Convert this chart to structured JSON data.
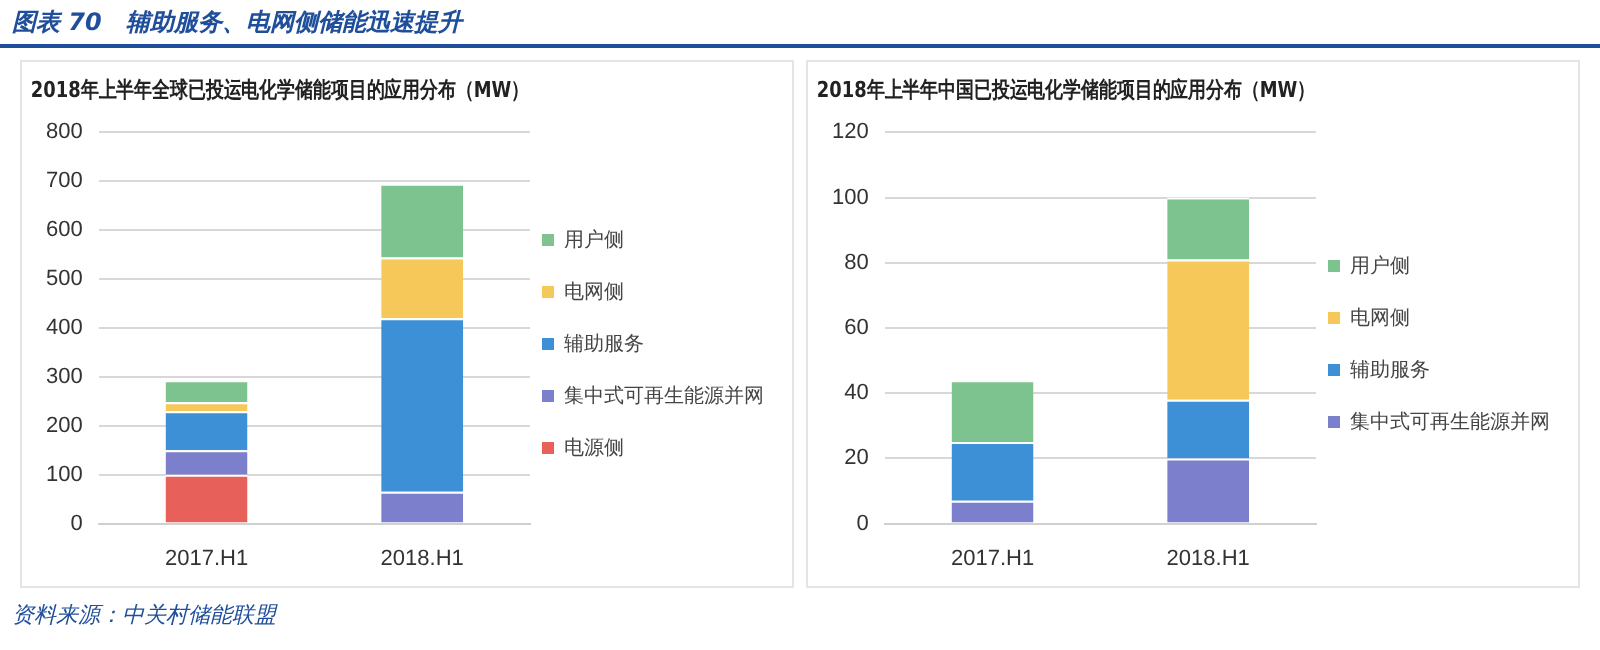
{
  "chart_data": [
    {
      "type": "bar",
      "title": "2018年上半年全球已投运电化学储能项目的应用分布（MW）",
      "categories": [
        "2017.H1",
        "2018.H1"
      ],
      "stacked": true,
      "ylim": [
        0,
        800
      ],
      "yticks": [
        0,
        100,
        200,
        300,
        400,
        500,
        600,
        700,
        800
      ],
      "grid": "y",
      "legend": "right",
      "series": [
        {
          "name": "电源侧",
          "color": "#e8605a",
          "values": [
            100,
            0
          ]
        },
        {
          "name": "集中式可再生能源并网",
          "color": "#7b7fcc",
          "values": [
            50,
            65
          ]
        },
        {
          "name": "辅助服务",
          "color": "#3d8fd6",
          "values": [
            80,
            355
          ]
        },
        {
          "name": "电网侧",
          "color": "#f6c85a",
          "values": [
            18,
            124
          ]
        },
        {
          "name": "用户侧",
          "color": "#7dc38f",
          "values": [
            45,
            151
          ]
        }
      ],
      "annotations": [
        "图表 70　辅助服务、电网侧储能迅速提升",
        "资料来源：中关村储能联盟"
      ]
    },
    {
      "type": "bar",
      "title": "2018年上半年中国已投运电化学储能项目的应用分布（MW）",
      "categories": [
        "2017.H1",
        "2018.H1"
      ],
      "stacked": true,
      "ylim": [
        0,
        120
      ],
      "yticks": [
        0,
        20,
        40,
        60,
        80,
        100,
        120
      ],
      "grid": "y",
      "legend": "right",
      "series": [
        {
          "name": "集中式可再生能源并网",
          "color": "#7b7fcc",
          "values": [
            7,
            20
          ]
        },
        {
          "name": "辅助服务",
          "color": "#3d8fd6",
          "values": [
            18,
            18
          ]
        },
        {
          "name": "电网侧",
          "color": "#f6c85a",
          "values": [
            0,
            43
          ]
        },
        {
          "name": "用户侧",
          "color": "#7dc38f",
          "values": [
            19,
            19
          ]
        }
      ]
    }
  ]
}
